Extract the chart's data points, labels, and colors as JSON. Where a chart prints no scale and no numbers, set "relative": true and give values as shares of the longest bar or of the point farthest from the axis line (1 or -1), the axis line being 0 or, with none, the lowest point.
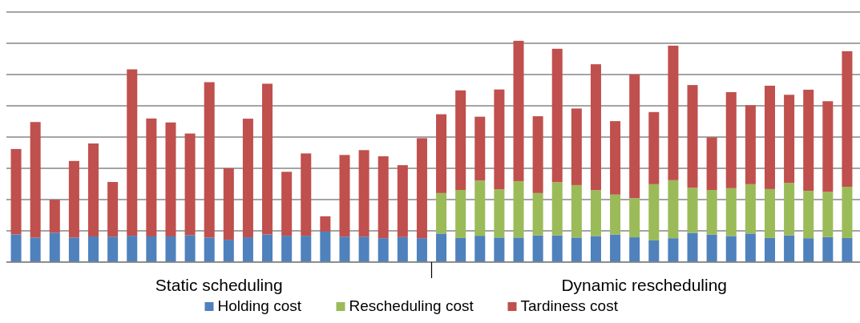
{
  "chart_data": {
    "type": "bar",
    "stacked": true,
    "relative": true,
    "grid": true,
    "legend": "bottom",
    "categories": [
      null,
      null,
      null,
      null,
      null,
      null,
      null,
      null,
      null,
      null,
      null,
      null,
      null,
      null,
      null,
      null,
      null,
      null,
      null,
      null,
      null,
      null,
      null,
      null,
      null,
      null,
      null,
      null,
      null,
      null,
      null,
      null,
      null,
      null,
      null,
      null,
      null,
      null,
      null,
      null,
      null,
      null,
      null,
      null
    ],
    "annotations": [
      "Static scheduling",
      "Dynamic  rescheduling"
    ],
    "series": [
      {
        "name": "Holding cost",
        "color": "#4f81bd",
        "values": [
          0.125,
          0.111,
          0.133,
          0.111,
          0.116,
          0.115,
          0.119,
          0.116,
          0.116,
          0.122,
          0.111,
          0.101,
          0.112,
          0.125,
          0.119,
          0.119,
          0.138,
          0.115,
          0.115,
          0.108,
          0.113,
          0.108,
          0.129,
          0.109,
          0.119,
          0.111,
          0.111,
          0.121,
          0.121,
          0.111,
          0.118,
          0.125,
          0.112,
          0.098,
          0.108,
          0.132,
          0.125,
          0.118,
          0.129,
          0.109,
          0.121,
          0.108,
          0.113,
          0.109
        ]
      },
      {
        "name": "Rescheduling cost",
        "color": "#9bbb59",
        "values": [
          null,
          null,
          null,
          null,
          null,
          null,
          null,
          null,
          null,
          null,
          null,
          null,
          null,
          null,
          null,
          null,
          null,
          null,
          null,
          null,
          null,
          null,
          0.183,
          0.217,
          0.25,
          0.218,
          0.255,
          0.191,
          0.24,
          0.237,
          0.207,
          0.18,
          0.177,
          0.254,
          0.262,
          0.204,
          0.201,
          0.216,
          0.223,
          0.221,
          0.237,
          0.214,
          0.204,
          0.231
        ]
      },
      {
        "name": "Tardiness cost",
        "color": "#c0504d",
        "values": [
          0.386,
          0.522,
          0.149,
          0.346,
          0.42,
          0.247,
          0.752,
          0.533,
          0.515,
          0.459,
          0.702,
          0.323,
          0.536,
          0.681,
          0.289,
          0.372,
          0.069,
          0.369,
          0.391,
          0.37,
          0.325,
          0.452,
          0.356,
          0.45,
          0.288,
          0.451,
          0.634,
          0.347,
          0.603,
          0.346,
          0.569,
          0.332,
          0.559,
          0.326,
          0.608,
          0.464,
          0.238,
          0.434,
          0.357,
          0.467,
          0.398,
          0.457,
          0.41,
          0.613
        ]
      }
    ]
  }
}
